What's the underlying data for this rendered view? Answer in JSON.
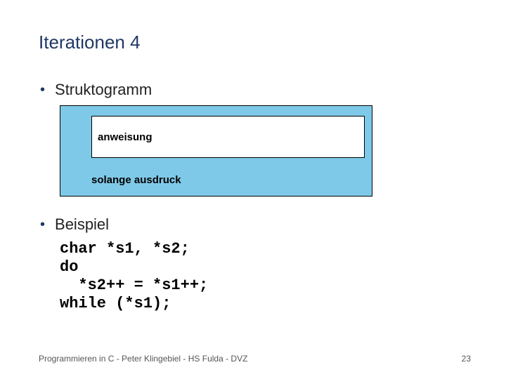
{
  "title": "Iterationen 4",
  "bullets": {
    "b1": "Struktogramm",
    "b2": "Beispiel"
  },
  "struktogramm": {
    "inner_label": "anweisung",
    "bottom_label": "solange ausdruck",
    "bg_color": "#7fc9e8",
    "inner_bg": "#ffffff",
    "border_color": "#000000",
    "label_fontsize": 15
  },
  "code": {
    "l1": "char *s1, *s2;",
    "l2": "do",
    "l3": "  *s2++ = *s1++;",
    "l4": "while (*s1);"
  },
  "footer": {
    "text": "Programmieren in C - Peter Klingebiel - HS Fulda - DVZ",
    "page": "23"
  },
  "colors": {
    "title": "#1f3864",
    "bullet_dot": "#1f3864",
    "body_text": "#222222",
    "background": "#ffffff"
  }
}
